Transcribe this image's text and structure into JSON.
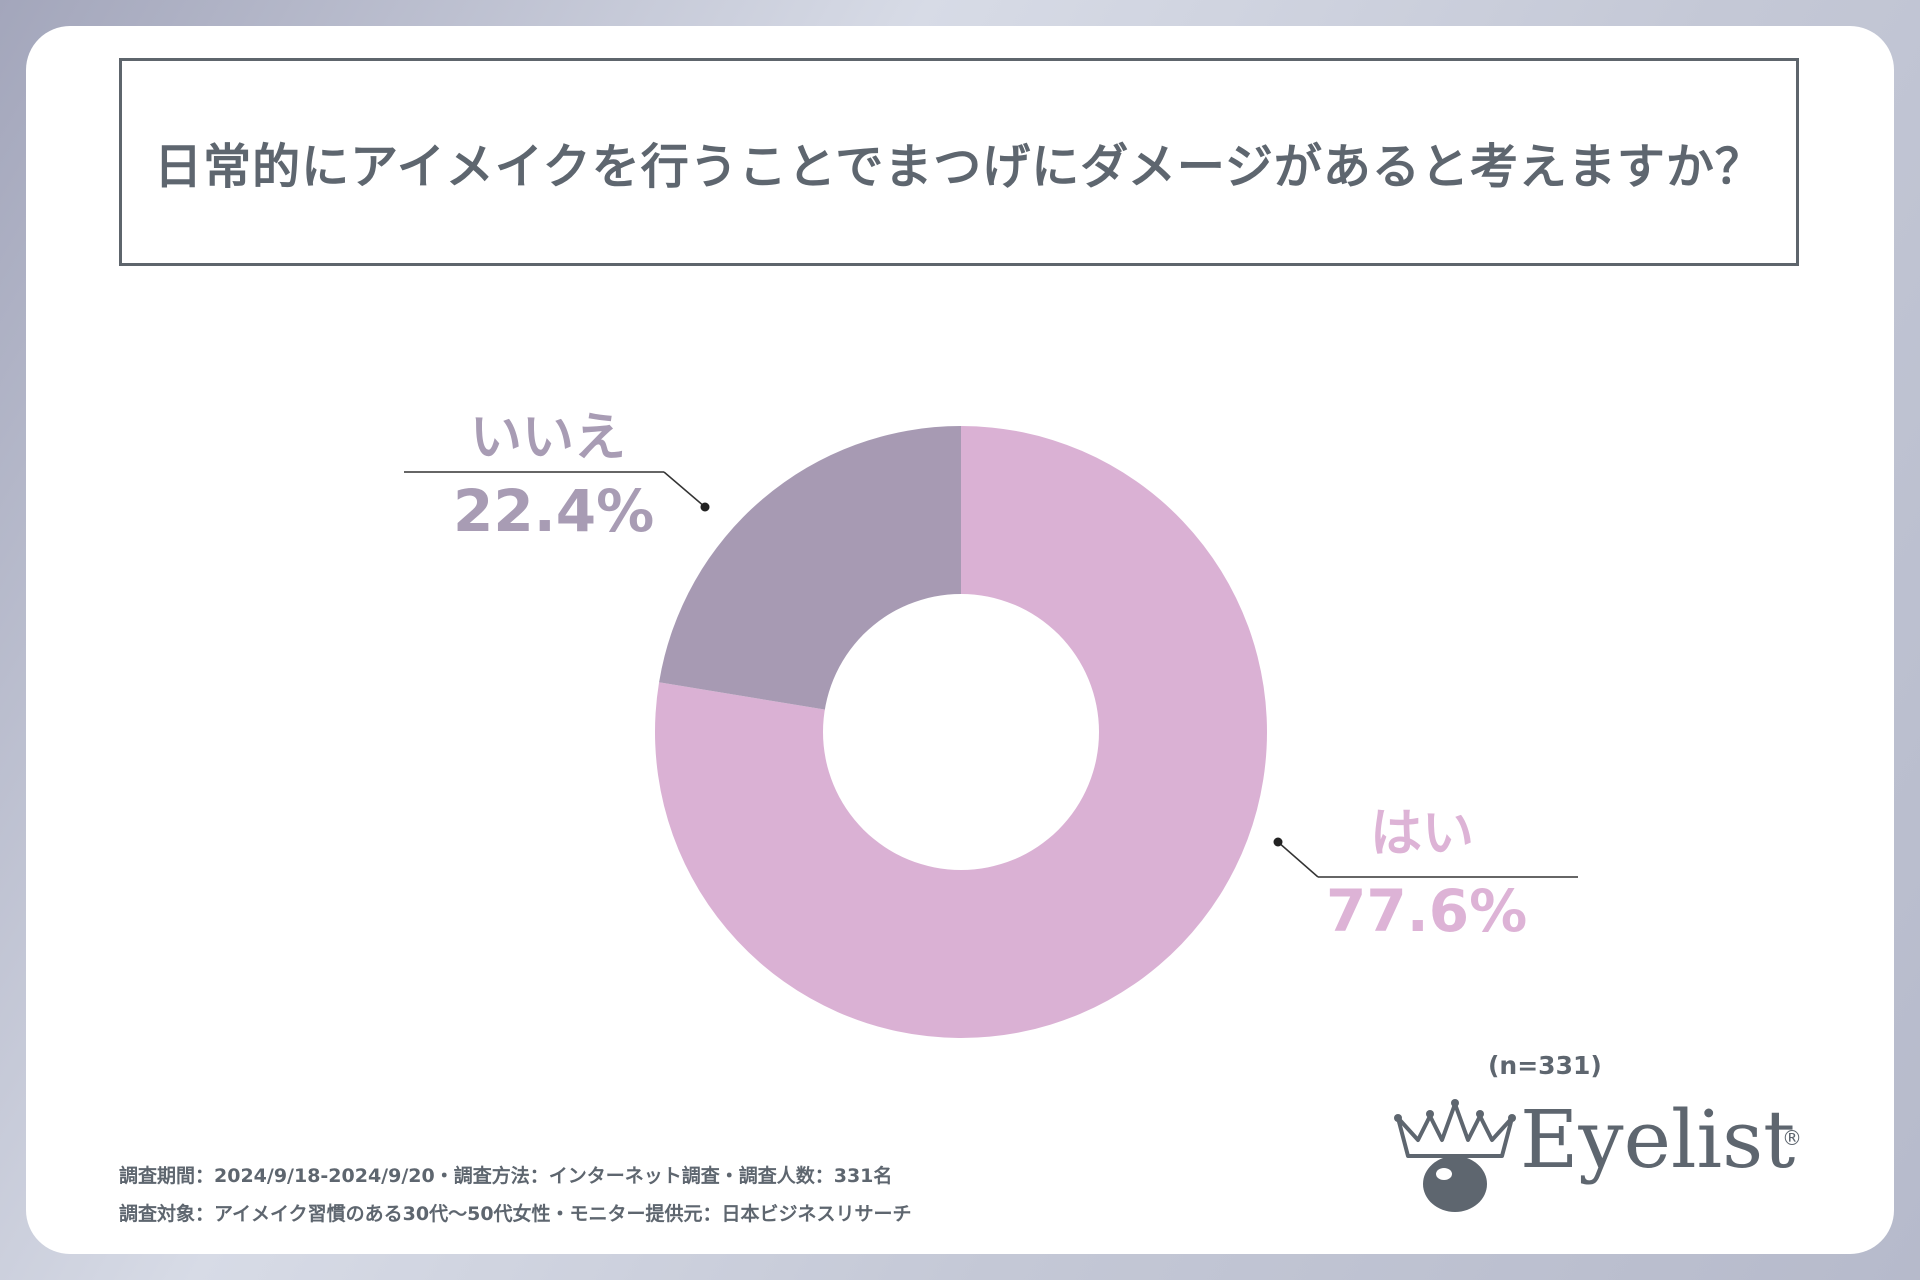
{
  "title": "日常的にアイメイクを行うことでまつげにダメージがあると考えますか？",
  "chart_data": {
    "type": "pie",
    "donut": true,
    "categories": [
      "はい",
      "いいえ"
    ],
    "values": [
      77.6,
      22.4
    ],
    "value_labels": [
      "77.6%",
      "22.4%"
    ],
    "colors": [
      "#dab1d4",
      "#a79ab3"
    ],
    "start": "12 o'clock, clockwise"
  },
  "labels": {
    "yes": {
      "name": "はい",
      "pct": "77.6%"
    },
    "no": {
      "name": "いいえ",
      "pct": "22.4%"
    }
  },
  "sample_size": "(n=331)",
  "footer": {
    "line1": "調査期間：2024/9/18-2024/9/20・調査方法：インターネット調査・調査人数：331名",
    "line2": "調査対象：アイメイク習慣のある30代～50代女性・モニター提供元：日本ビジネスリサーチ"
  },
  "logo": {
    "text": "Eyelist",
    "reg": "®"
  }
}
